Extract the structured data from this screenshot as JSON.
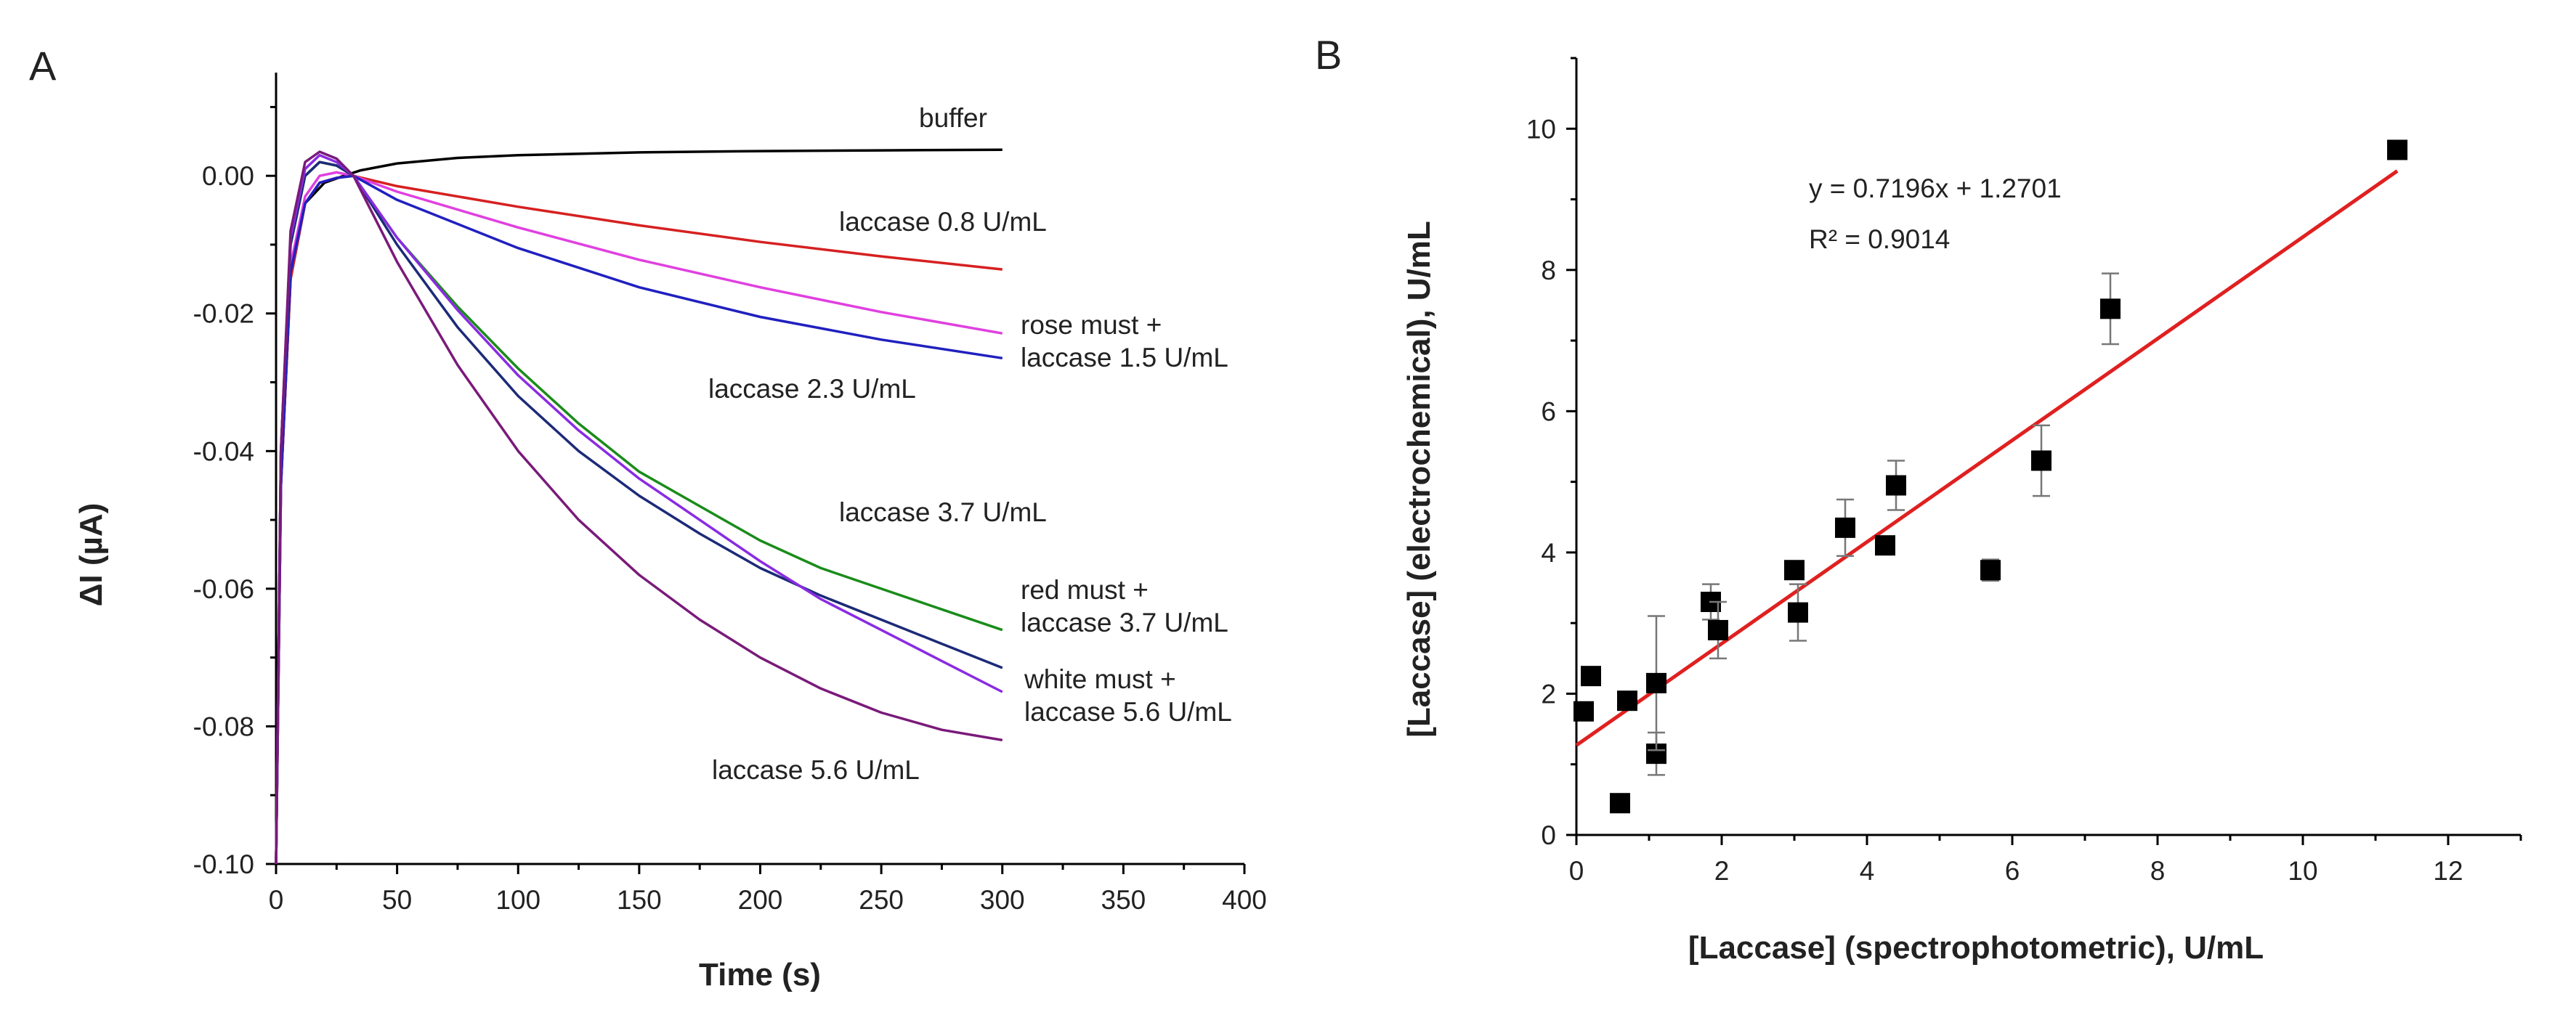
{
  "chart_data": [
    {
      "panel_label": "A",
      "type": "line",
      "xlabel": "Time (s)",
      "ylabel": "ΔI (µA)",
      "xlim": [
        0,
        400
      ],
      "ylim": [
        -0.1,
        0.015
      ],
      "xticks": [
        0,
        50,
        100,
        150,
        200,
        250,
        300,
        350,
        400
      ],
      "yticks": [
        -0.1,
        -0.08,
        -0.06,
        -0.04,
        -0.02,
        0.0
      ],
      "ytick_labels": [
        "-0.10",
        "-0.08",
        "-0.06",
        "-0.04",
        "-0.02",
        "0.00"
      ],
      "grid": false,
      "series": [
        {
          "name": "buffer",
          "label": "buffer",
          "color": "#000000",
          "x": [
            0,
            2,
            6,
            12,
            20,
            28,
            35,
            50,
            75,
            100,
            150,
            200,
            250,
            300
          ],
          "y": [
            -0.1,
            -0.045,
            -0.015,
            -0.004,
            -0.001,
            0.0,
            0.0008,
            0.0018,
            0.0026,
            0.003,
            0.0034,
            0.0036,
            0.0037,
            0.0038
          ]
        },
        {
          "name": "laccase 0.8 U/mL",
          "label": "laccase 0.8 U/mL",
          "color": "#d62020",
          "x": [
            0,
            2,
            6,
            12,
            18,
            25,
            32,
            50,
            100,
            150,
            200,
            250,
            300
          ],
          "y": [
            -0.1,
            -0.045,
            -0.015,
            -0.004,
            -0.001,
            -0.0003,
            0.0,
            -0.0015,
            -0.0045,
            -0.0072,
            -0.0096,
            -0.0117,
            -0.0136
          ]
        },
        {
          "name": "laccase 1.5 U/mL",
          "label": [
            "rose must +",
            "laccase 1.5 U/mL"
          ],
          "color": "#e040e0",
          "x": [
            0,
            2,
            6,
            12,
            18,
            25,
            32,
            50,
            100,
            150,
            200,
            250,
            300
          ],
          "y": [
            -0.1,
            -0.045,
            -0.013,
            -0.003,
            0.0,
            0.0005,
            0.0,
            -0.0023,
            -0.0075,
            -0.0122,
            -0.0162,
            -0.0198,
            -0.0229
          ]
        },
        {
          "name": "laccase 2.3 U/mL",
          "label": "laccase 2.3 U/mL",
          "color": "#2020c0",
          "x": [
            0,
            2,
            6,
            12,
            18,
            25,
            32,
            50,
            100,
            150,
            200,
            250,
            300
          ],
          "y": [
            -0.1,
            -0.045,
            -0.014,
            -0.004,
            -0.001,
            -0.0003,
            0.0,
            -0.0035,
            -0.0105,
            -0.0162,
            -0.0205,
            -0.0238,
            -0.0265
          ]
        },
        {
          "name": "laccase 3.7 U/mL",
          "label": "laccase 3.7 U/mL",
          "color": "#1a8c1a",
          "x": [
            0,
            2,
            6,
            12,
            18,
            25,
            32,
            50,
            75,
            100,
            125,
            150,
            175,
            200,
            225,
            250,
            275,
            300
          ],
          "y": [
            -0.1,
            -0.04,
            -0.01,
            0.0,
            0.002,
            0.0015,
            0.0,
            -0.009,
            -0.019,
            -0.028,
            -0.036,
            -0.043,
            -0.048,
            -0.053,
            -0.057,
            -0.06,
            -0.063,
            -0.066
          ]
        },
        {
          "name": "red must + laccase 3.7 U/mL",
          "label": [
            "red must +",
            "laccase 3.7 U/mL"
          ],
          "color": "#1c2a78",
          "x": [
            0,
            2,
            6,
            12,
            18,
            25,
            32,
            50,
            75,
            100,
            125,
            150,
            175,
            200,
            225,
            250,
            275,
            300
          ],
          "y": [
            -0.1,
            -0.04,
            -0.01,
            0.0,
            0.002,
            0.0015,
            0.0,
            -0.01,
            -0.022,
            -0.032,
            -0.04,
            -0.0465,
            -0.052,
            -0.057,
            -0.061,
            -0.0645,
            -0.068,
            -0.0715
          ]
        },
        {
          "name": "white must + laccase 5.6 U/mL",
          "label": [
            "white must +",
            "laccase 5.6 U/mL"
          ],
          "color": "#8a2be2",
          "x": [
            0,
            2,
            6,
            12,
            18,
            25,
            32,
            50,
            75,
            100,
            125,
            150,
            175,
            200,
            225,
            250,
            275,
            300
          ],
          "y": [
            -0.1,
            -0.04,
            -0.009,
            0.001,
            0.003,
            0.002,
            0.0,
            -0.009,
            -0.0195,
            -0.029,
            -0.037,
            -0.044,
            -0.05,
            -0.056,
            -0.0615,
            -0.066,
            -0.0705,
            -0.075
          ]
        },
        {
          "name": "laccase 5.6 U/mL",
          "label": "laccase 5.6 U/mL",
          "color": "#7a1a7a",
          "x": [
            0,
            2,
            6,
            12,
            18,
            25,
            32,
            50,
            75,
            100,
            125,
            150,
            175,
            200,
            225,
            250,
            275,
            300
          ],
          "y": [
            -0.1,
            -0.04,
            -0.008,
            0.002,
            0.0035,
            0.0025,
            0.0,
            -0.0125,
            -0.0275,
            -0.04,
            -0.05,
            -0.058,
            -0.0645,
            -0.07,
            -0.0745,
            -0.078,
            -0.0805,
            -0.082
          ]
        }
      ]
    },
    {
      "panel_label": "B",
      "type": "scatter",
      "xlabel": "[Laccase] (spectrophotometric), U/mL",
      "ylabel": "[Laccase] (electrochemical), U/mL",
      "xlim": [
        0,
        13
      ],
      "ylim": [
        0,
        11
      ],
      "xticks": [
        0,
        2,
        4,
        6,
        8,
        10,
        12
      ],
      "yticks": [
        0,
        2,
        4,
        6,
        8,
        10
      ],
      "grid": false,
      "points": [
        {
          "x": 0.1,
          "y": 1.75,
          "err": 0
        },
        {
          "x": 0.2,
          "y": 2.25,
          "err": 0
        },
        {
          "x": 0.6,
          "y": 0.45,
          "err": 0
        },
        {
          "x": 0.7,
          "y": 1.9,
          "err": 0
        },
        {
          "x": 1.1,
          "y": 1.15,
          "err": 0.3
        },
        {
          "x": 1.1,
          "y": 2.15,
          "err": 0.95
        },
        {
          "x": 1.85,
          "y": 3.3,
          "err": 0.25
        },
        {
          "x": 1.95,
          "y": 2.9,
          "err": 0.4
        },
        {
          "x": 3.0,
          "y": 3.75,
          "err": 0
        },
        {
          "x": 3.05,
          "y": 3.15,
          "err": 0.4
        },
        {
          "x": 3.7,
          "y": 4.35,
          "err": 0.4
        },
        {
          "x": 4.25,
          "y": 4.1,
          "err": 0
        },
        {
          "x": 4.4,
          "y": 4.95,
          "err": 0.35
        },
        {
          "x": 5.7,
          "y": 3.75,
          "err": 0.15
        },
        {
          "x": 6.4,
          "y": 5.3,
          "err": 0.5
        },
        {
          "x": 7.35,
          "y": 7.45,
          "err": 0.5
        },
        {
          "x": 11.3,
          "y": 9.7,
          "err": 0
        }
      ],
      "fit": {
        "slope": 0.7196,
        "intercept": 1.2701,
        "x_range": [
          0,
          11.3
        ],
        "color": "#e02020"
      },
      "annotations": [
        "y = 0.7196x + 1.2701",
        "R² = 0.9014"
      ]
    }
  ]
}
